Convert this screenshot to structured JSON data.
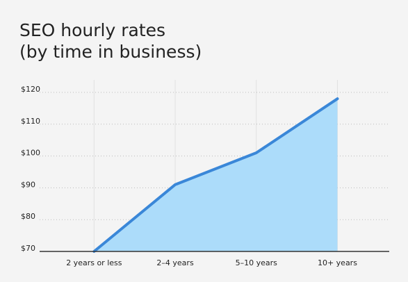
{
  "chart_data": {
    "type": "area",
    "title": "SEO hourly rates",
    "subtitle": "(by time in business)",
    "categories": [
      "2 years or less",
      "2–4 years",
      "5–10 years",
      "10+ years"
    ],
    "values": [
      70,
      91,
      101,
      118
    ],
    "line_color": "#3a87d8",
    "fill_color": "#acdcfa",
    "ylim": [
      70,
      120
    ],
    "yticks": [
      {
        "value": 70,
        "label": "$70"
      },
      {
        "value": 80,
        "label": "$80"
      },
      {
        "value": 90,
        "label": "$90"
      },
      {
        "value": 100,
        "label": "$100"
      },
      {
        "value": 110,
        "label": "$110"
      },
      {
        "value": 120,
        "label": "$120"
      }
    ],
    "grid": true
  }
}
